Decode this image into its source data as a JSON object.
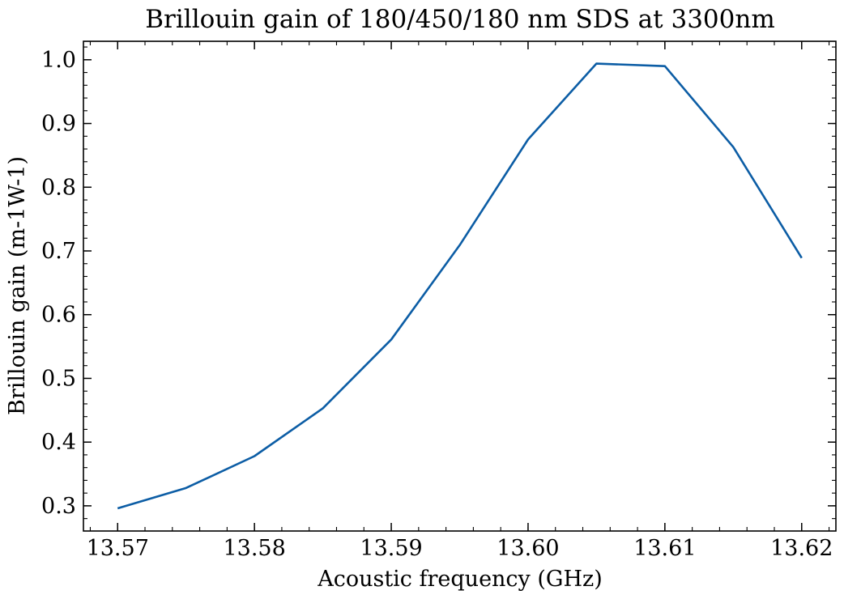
{
  "chart_data": {
    "type": "line",
    "title": "Brillouin gain of 180/450/180 nm SDS at 3300nm",
    "xlabel": "Acoustic frequency (GHz)",
    "ylabel": "Brillouin gain (m-1W-1)",
    "xlim": [
      13.5675,
      13.6225
    ],
    "ylim": [
      0.2605,
      1.029
    ],
    "x_ticks": [
      13.57,
      13.58,
      13.59,
      13.6,
      13.61,
      13.62
    ],
    "x_tick_labels": [
      "13.57",
      "13.58",
      "13.59",
      "13.60",
      "13.61",
      "13.62"
    ],
    "y_ticks": [
      0.3,
      0.4,
      0.5,
      0.6,
      0.7,
      0.8,
      0.9,
      1.0
    ],
    "y_tick_labels": [
      "0.3",
      "0.4",
      "0.5",
      "0.6",
      "0.7",
      "0.8",
      "0.9",
      "1.0"
    ],
    "x_minor_step": 0.002,
    "y_minor_step": 0.02,
    "grid": false,
    "series": [
      {
        "color": "#0c5da5",
        "x": [
          13.57,
          13.575,
          13.58,
          13.585,
          13.59,
          13.595,
          13.6,
          13.605,
          13.61,
          13.615,
          13.62
        ],
        "y": [
          0.296,
          0.328,
          0.378,
          0.453,
          0.561,
          0.709,
          0.875,
          0.994,
          0.99,
          0.863,
          0.689
        ]
      }
    ]
  }
}
